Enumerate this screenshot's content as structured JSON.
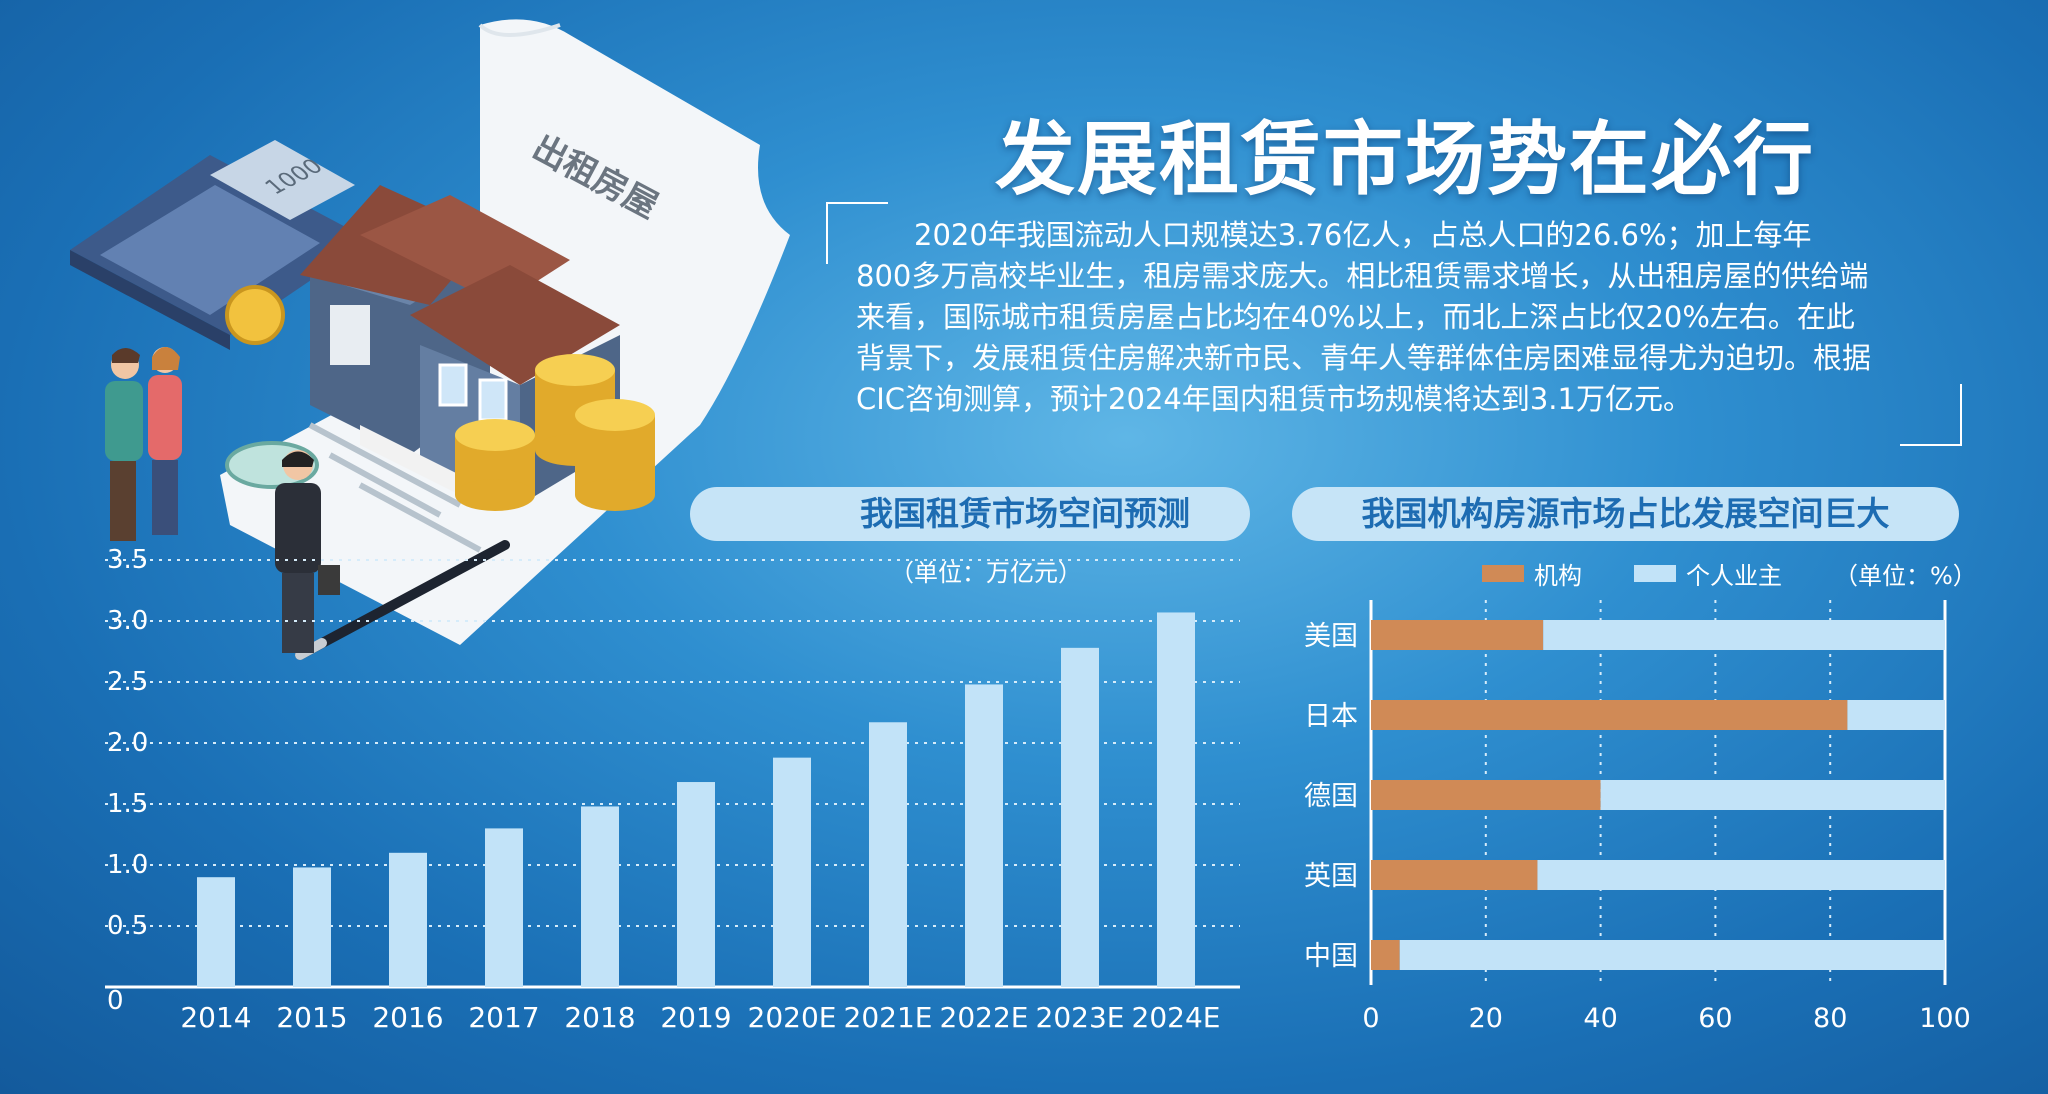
{
  "header": {
    "title": "发展租赁市场势在必行",
    "paragraph": [
      "　　2020年我国流动人口规模达3.76亿人，占总人口的26.6%；加上每年",
      "800多万高校毕业生，租房需求庞大。相比租赁需求增长，从出租房屋的供给端",
      "来看，国际城市租赁房屋占比均在40%以上，而北上深占比仅20%左右。在此",
      "背景下，发展租赁住房解决新市民、青年人等群体住房困难显得尤为迫切。根据",
      "CIC咨询测算，预计2024年国内租赁市场规模将达到3.1万亿元。"
    ]
  },
  "illustration": {
    "sign_text": "出租房屋",
    "calculator_display": "1000"
  },
  "colors": {
    "bar": "#c2e3f8",
    "institution": "#d08a56",
    "individual": "#c2e3f8",
    "grid": "#d6ecfa"
  },
  "chart_data": [
    {
      "type": "bar",
      "title": "我国租赁市场空间预测",
      "unit": "（单位：万亿元）",
      "categories": [
        "2014",
        "2015",
        "2016",
        "2017",
        "2018",
        "2019",
        "2020E",
        "2021E",
        "2022E",
        "2023E",
        "2024E"
      ],
      "values": [
        0.9,
        0.98,
        1.1,
        1.3,
        1.48,
        1.68,
        1.88,
        2.17,
        2.48,
        2.78,
        3.07
      ],
      "ylim": [
        0,
        3.5
      ],
      "yticks": [
        "0",
        "0.5",
        "1.0",
        "1.5",
        "2.0",
        "2.5",
        "3.0",
        "3.5"
      ],
      "grid": true
    },
    {
      "type": "bar",
      "orientation": "horizontal",
      "stacked": true,
      "title": "我国机构房源市场占比发展空间巨大",
      "unit": "（单位：%）",
      "categories": [
        "美国",
        "日本",
        "德国",
        "英国",
        "中国"
      ],
      "series": [
        {
          "name": "机构",
          "values": [
            30,
            83,
            40,
            29,
            5
          ]
        },
        {
          "name": "个人业主",
          "values": [
            70,
            17,
            60,
            71,
            95
          ]
        }
      ],
      "xlim": [
        0,
        100
      ],
      "xticks": [
        "0",
        "20",
        "40",
        "60",
        "80",
        "100"
      ],
      "grid": true
    }
  ]
}
